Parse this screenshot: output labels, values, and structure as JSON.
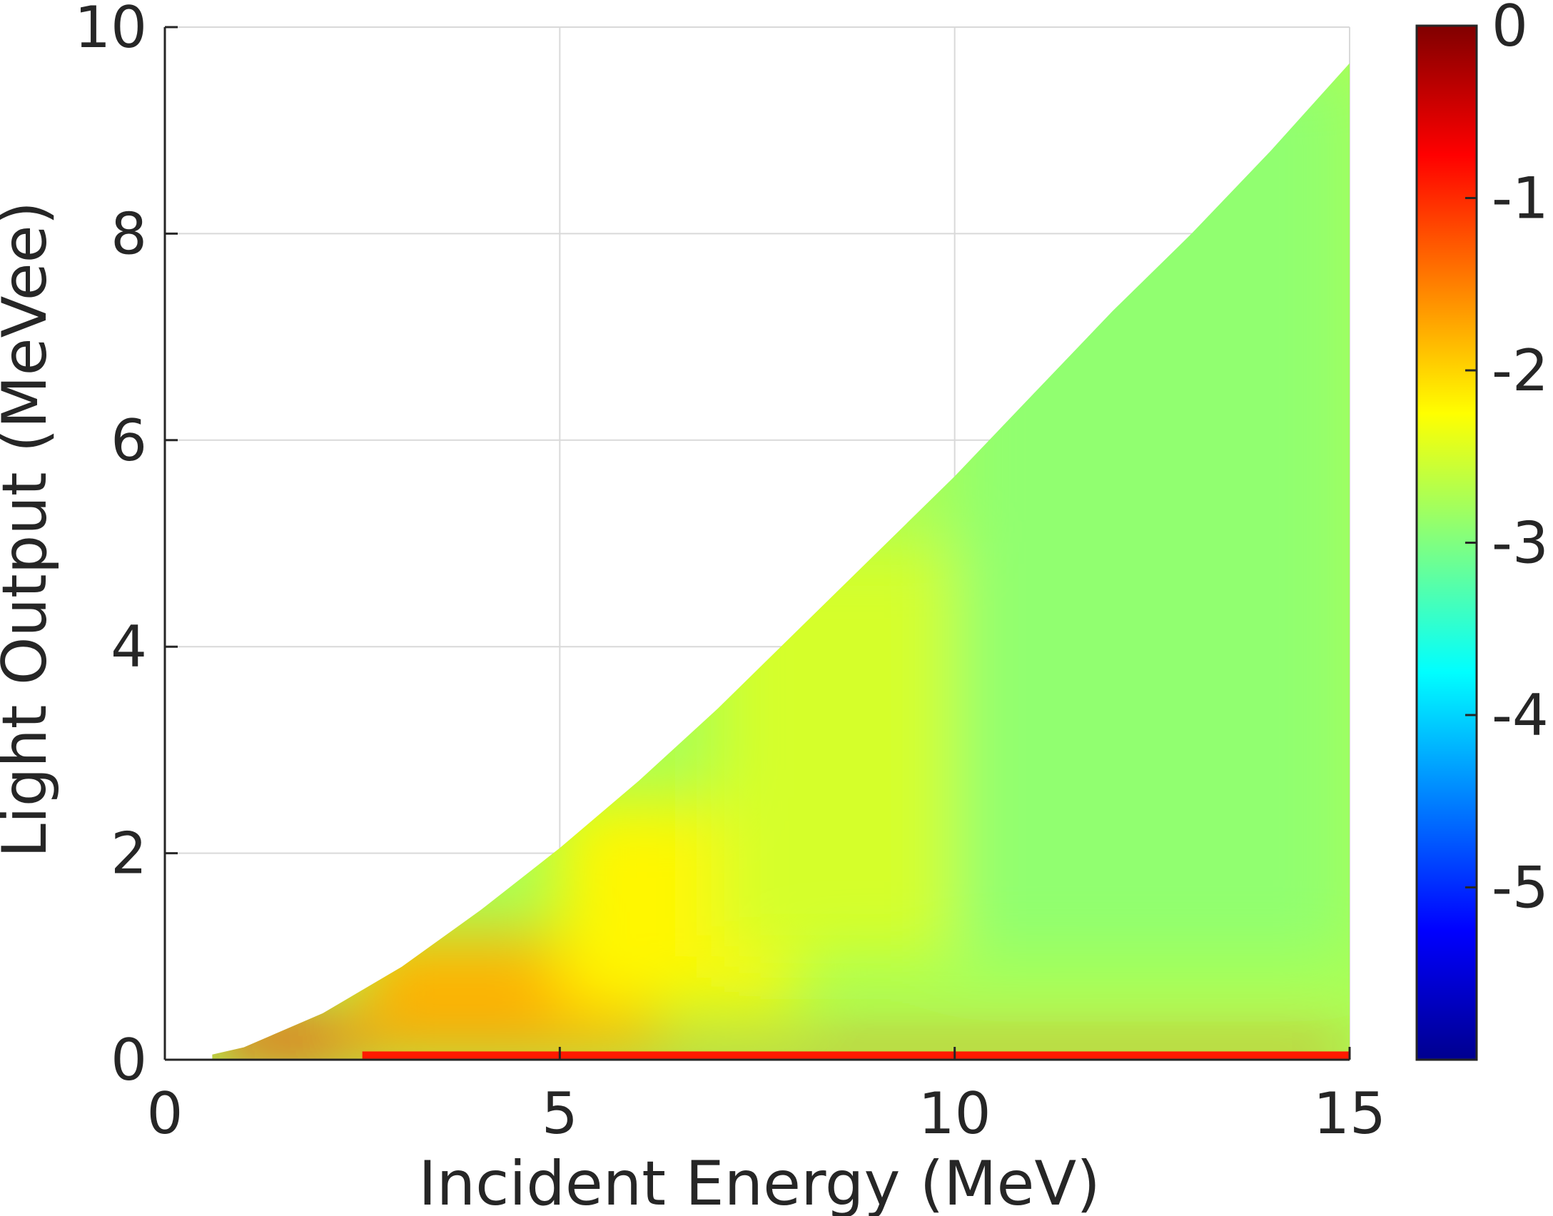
{
  "chart_data": {
    "type": "heatmap",
    "xlabel": "Incident Energy (MeV)",
    "ylabel": "Light Output (MeVee)",
    "xlim": [
      0,
      15
    ],
    "ylim": [
      0,
      10
    ],
    "x_ticks": [
      "0",
      "5",
      "10",
      "15"
    ],
    "y_ticks": [
      "0",
      "2",
      "4",
      "6",
      "8",
      "10"
    ],
    "grid": true,
    "colorbar": {
      "placement": "right",
      "range": [
        -6,
        0
      ],
      "ticks": [
        "0",
        "-1",
        "-2",
        "-3",
        "-4",
        "-5"
      ],
      "colormap": "jet"
    },
    "region_boundary": {
      "description_x_start_MeV": 0.6,
      "upper_edge_points": [
        [
          0.6,
          0.05
        ],
        [
          1,
          0.12
        ],
        [
          2,
          0.45
        ],
        [
          3,
          0.9
        ],
        [
          4,
          1.45
        ],
        [
          5,
          2.05
        ],
        [
          6,
          2.7
        ],
        [
          7,
          3.4
        ],
        [
          8,
          4.15
        ],
        [
          9,
          4.9
        ],
        [
          10,
          5.65
        ],
        [
          11,
          6.45
        ],
        [
          12,
          7.25
        ],
        [
          13,
          8.0
        ],
        [
          14,
          8.8
        ],
        [
          15,
          9.65
        ]
      ]
    },
    "value_regions": [
      {
        "x": [
          0.6,
          2.5
        ],
        "y": [
          0,
          0.4
        ],
        "value": -1.0
      },
      {
        "x": [
          2.5,
          6.2
        ],
        "y": [
          0.2,
          1.2
        ],
        "value": -1.8
      },
      {
        "x": [
          5,
          8
        ],
        "y": [
          0.5,
          2.5
        ],
        "value": -2.2
      },
      {
        "x": [
          7,
          11
        ],
        "y": [
          1,
          5
        ],
        "value": -2.5
      },
      {
        "x": [
          10,
          15
        ],
        "y": [
          1,
          9.6
        ],
        "value": -2.9
      },
      {
        "x": [
          2,
          15
        ],
        "y": [
          0,
          0.15
        ],
        "value": -1.2
      }
    ],
    "colors": {
      "background": "#ffffff",
      "axis": "#262626",
      "grid": "#d9d9d9"
    }
  }
}
